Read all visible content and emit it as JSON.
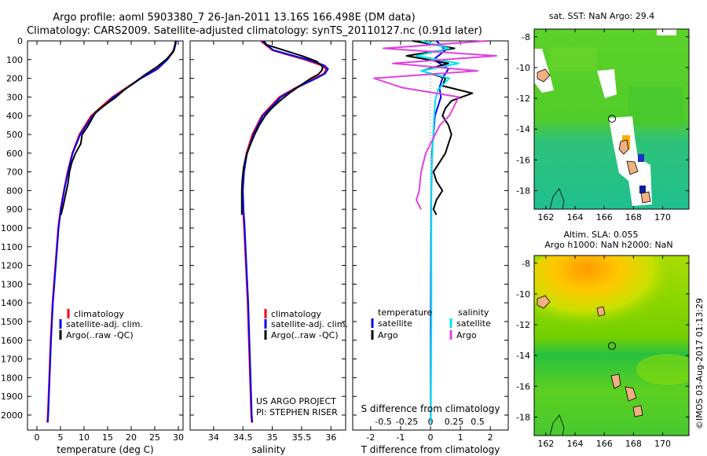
{
  "header": {
    "line1": "Argo profile: aoml 5903380_7 26-Jan-2011 13.16S 166.498E (DM data)",
    "line2": "Climatology: CARS2009. Satellite-adjusted climatology: synTS_20110127.nc (0.91d later)"
  },
  "colors": {
    "climatology": "#ff0000",
    "satellite": "#0000ff",
    "argo": "#000000",
    "s_satellite": "#00e5ee",
    "s_argo": "#e040e0"
  },
  "depth_ticks": [
    "0",
    "100",
    "200",
    "300",
    "400",
    "500",
    "600",
    "700",
    "800",
    "900",
    "1000",
    "1100",
    "1200",
    "1300",
    "1400",
    "1500",
    "1600",
    "1700",
    "1800",
    "1900",
    "2000"
  ],
  "legend": {
    "climatology": "climatology",
    "satellite": "satellite-adj. clim.",
    "argo": "Argo(..raw -QC)"
  },
  "project": {
    "line1": "US ARGO PROJECT",
    "line2": "PI: STEPHEN RISER"
  },
  "diff_legend": {
    "temp_title": "temperature",
    "sal_title": "salinity",
    "satellite": "satellite",
    "argo": "Argo"
  },
  "maps": {
    "sst_title": "sat. SST: NaN Argo: 29.4",
    "sla_title1": "Altim. SLA: 0.055",
    "sla_title2": "Argo h1000: NaN h2000: NaN",
    "lat_ticks": [
      "-8",
      "-10",
      "-12",
      "-14",
      "-16",
      "-18"
    ],
    "lon_ticks": [
      "162",
      "164",
      "166",
      "168",
      "170"
    ]
  },
  "footer": "©IMOS 03-Aug-2017 01:13:29",
  "chart_data": [
    {
      "type": "line",
      "title": "Temperature profile",
      "xlabel": "temperature (deg C)",
      "ylabel": "depth",
      "xlim": [
        -2,
        31
      ],
      "ylim": [
        2080,
        0
      ],
      "xticks": [
        0,
        5,
        10,
        15,
        20,
        25,
        30
      ],
      "xtick_labels": [
        "0",
        "5",
        "10",
        "15",
        "20",
        "25",
        "30"
      ],
      "series": [
        {
          "name": "climatology",
          "color": "#ff0000",
          "depth": [
            0,
            50,
            100,
            150,
            200,
            300,
            400,
            500,
            600,
            700,
            800,
            900,
            1000,
            1200,
            1400,
            1600,
            1800,
            2000,
            2040
          ],
          "values": [
            29.5,
            29,
            27.5,
            25.5,
            22,
            16,
            11.5,
            9,
            7.5,
            6.5,
            5.7,
            5,
            4.5,
            3.9,
            3.3,
            2.9,
            2.6,
            2.3,
            2.2
          ]
        },
        {
          "name": "satellite-adj. clim.",
          "color": "#0000ff",
          "depth": [
            0,
            50,
            100,
            150,
            200,
            300,
            400,
            500,
            600,
            700,
            800,
            900,
            1000,
            1200,
            1400,
            1600,
            1800,
            2000,
            2040
          ],
          "values": [
            29.6,
            29.1,
            27.7,
            25.6,
            22.1,
            16.3,
            11.8,
            9.2,
            7.6,
            6.6,
            5.8,
            5.1,
            4.6,
            4.0,
            3.4,
            3.0,
            2.7,
            2.4,
            2.3
          ]
        },
        {
          "name": "Argo(..raw -QC)",
          "color": "#000000",
          "depth": [
            0,
            20,
            60,
            100,
            140,
            180,
            220,
            260,
            300,
            340,
            380,
            420,
            460,
            500,
            550,
            600,
            650,
            700,
            760,
            820,
            880,
            930
          ],
          "values": [
            29.4,
            29.3,
            28.9,
            27.4,
            25.4,
            23,
            20.8,
            18.6,
            16.8,
            14.6,
            12.5,
            11.6,
            10.7,
            9.6,
            9.3,
            8.2,
            7.4,
            6.9,
            6.6,
            6.1,
            5.6,
            5.1
          ]
        }
      ]
    },
    {
      "type": "line",
      "title": "Salinity profile",
      "xlabel": "salinity",
      "ylabel": "depth",
      "xlim": [
        33.6,
        36.25
      ],
      "ylim": [
        2080,
        0
      ],
      "xticks": [
        34,
        34.5,
        35,
        35.5,
        36
      ],
      "xtick_labels": [
        "34",
        "34.5",
        "35",
        "35.5",
        "36"
      ],
      "series": [
        {
          "name": "climatology",
          "color": "#ff0000",
          "depth": [
            0,
            50,
            100,
            130,
            150,
            175,
            200,
            250,
            300,
            400,
            500,
            600,
            700,
            800,
            900,
            1000,
            1200,
            1400,
            1600,
            1800,
            2000,
            2040
          ],
          "values": [
            34.8,
            35.0,
            35.55,
            35.83,
            35.92,
            35.88,
            35.72,
            35.4,
            35.12,
            34.82,
            34.66,
            34.56,
            34.51,
            34.49,
            34.5,
            34.52,
            34.55,
            34.58,
            34.6,
            34.62,
            34.64,
            34.65
          ]
        },
        {
          "name": "satellite-adj. clim.",
          "color": "#0000ff",
          "depth": [
            0,
            50,
            100,
            130,
            150,
            175,
            200,
            250,
            300,
            400,
            500,
            600,
            700,
            800,
            900,
            1000,
            1200,
            1400,
            1600,
            1800,
            2000,
            2040
          ],
          "values": [
            34.82,
            35.02,
            35.6,
            35.88,
            35.95,
            35.9,
            35.75,
            35.42,
            35.15,
            34.84,
            34.68,
            34.57,
            34.52,
            34.5,
            34.51,
            34.53,
            34.56,
            34.59,
            34.61,
            34.63,
            34.65,
            34.66
          ]
        },
        {
          "name": "Argo(..raw -QC)",
          "color": "#000000",
          "depth": [
            0,
            20,
            50,
            80,
            110,
            140,
            160,
            180,
            200,
            240,
            280,
            320,
            360,
            400,
            450,
            500,
            560,
            620,
            680,
            740,
            800,
            860,
            930
          ],
          "values": [
            34.86,
            34.9,
            35.2,
            35.5,
            35.76,
            35.86,
            35.84,
            35.78,
            35.66,
            35.47,
            35.29,
            35.13,
            34.99,
            34.88,
            34.78,
            34.7,
            34.62,
            34.55,
            34.51,
            34.49,
            34.48,
            34.48,
            34.48
          ]
        }
      ]
    },
    {
      "type": "line",
      "title": "Difference from climatology",
      "xlabel": "T difference from climatology",
      "x2label": "S difference from climatology",
      "ylabel": "depth",
      "xlim": [
        -2.6,
        2.6
      ],
      "ylim": [
        2080,
        0
      ],
      "xticks": [
        -2,
        -1,
        0,
        1,
        2
      ],
      "xtick_labels": [
        "-2",
        "-1",
        "0",
        "1",
        "2"
      ],
      "x2ticks": [
        -0.5,
        -0.25,
        0,
        0.25,
        0.5
      ],
      "x2tick_labels": [
        "-0.5",
        "-0.25",
        "0",
        "0.25",
        "0.5"
      ],
      "series": [
        {
          "name": "T satellite",
          "color": "#0000ff",
          "depth": [
            0,
            50,
            100,
            150,
            200,
            250,
            300,
            350,
            400,
            500,
            600,
            700,
            800,
            900,
            1000,
            1500,
            2000,
            2040
          ],
          "values": [
            0.2,
            0.5,
            0.1,
            0.6,
            0.4,
            0.3,
            0.35,
            0.25,
            0.15,
            0.1,
            0.05,
            0.04,
            0.03,
            0.02,
            0.02,
            0.01,
            0.01,
            0.01
          ]
        },
        {
          "name": "T Argo",
          "color": "#000000",
          "depth": [
            0,
            40,
            80,
            120,
            160,
            200,
            240,
            280,
            320,
            360,
            400,
            450,
            500,
            550,
            600,
            650,
            700,
            750,
            800,
            850,
            900,
            930
          ],
          "values": [
            -0.6,
            0.8,
            -0.8,
            0.6,
            -0.3,
            0.5,
            0.4,
            1.4,
            0.7,
            0.5,
            0.4,
            0.6,
            0.7,
            0.6,
            0.5,
            0.3,
            0.1,
            0.2,
            0.4,
            0.2,
            0.1,
            0.2
          ]
        },
        {
          "name": "S satellite",
          "color": "#00e5ee",
          "depth": [
            0,
            40,
            80,
            120,
            160,
            200,
            260,
            320,
            400,
            500,
            600,
            700,
            800,
            900,
            1000,
            1500,
            2000,
            2040
          ],
          "values": [
            -0.1,
            0.2,
            -0.15,
            0.3,
            -0.1,
            0.2,
            0.08,
            0.05,
            0.04,
            0.03,
            0.02,
            0.01,
            0.01,
            0.01,
            0.01,
            0.01,
            0.005,
            0.005
          ]
        },
        {
          "name": "S Argo",
          "color": "#e040e0",
          "depth": [
            0,
            40,
            80,
            120,
            160,
            200,
            250,
            300,
            400,
            450,
            500,
            600,
            700,
            800,
            850,
            900
          ],
          "values": [
            0.6,
            -0.5,
            0.7,
            -0.4,
            0.5,
            -0.6,
            -0.3,
            0.3,
            0.2,
            0.1,
            0.05,
            -0.05,
            -0.1,
            -0.12,
            -0.15,
            -0.1
          ]
        }
      ]
    },
    {
      "type": "heatmap",
      "title": "sat. SST: NaN Argo: 29.4",
      "xlim": [
        161.2,
        171.8
      ],
      "ylim": [
        -19.2,
        -7.5
      ],
      "xtick_labels": [
        "162",
        "164",
        "166",
        "168",
        "170"
      ],
      "ytick_labels": [
        "-8",
        "-10",
        "-12",
        "-14",
        "-16",
        "-18"
      ],
      "argo_position": {
        "lon": 166.498,
        "lat": -13.16
      }
    },
    {
      "type": "heatmap",
      "title": "Altim. SLA: 0.055",
      "xlim": [
        161.2,
        171.8
      ],
      "ylim": [
        -19.2,
        -7.5
      ],
      "xtick_labels": [
        "162",
        "164",
        "166",
        "168",
        "170"
      ],
      "ytick_labels": [
        "-8",
        "-10",
        "-12",
        "-14",
        "-16",
        "-18"
      ],
      "argo_position": {
        "lon": 166.498,
        "lat": -13.16
      }
    }
  ]
}
